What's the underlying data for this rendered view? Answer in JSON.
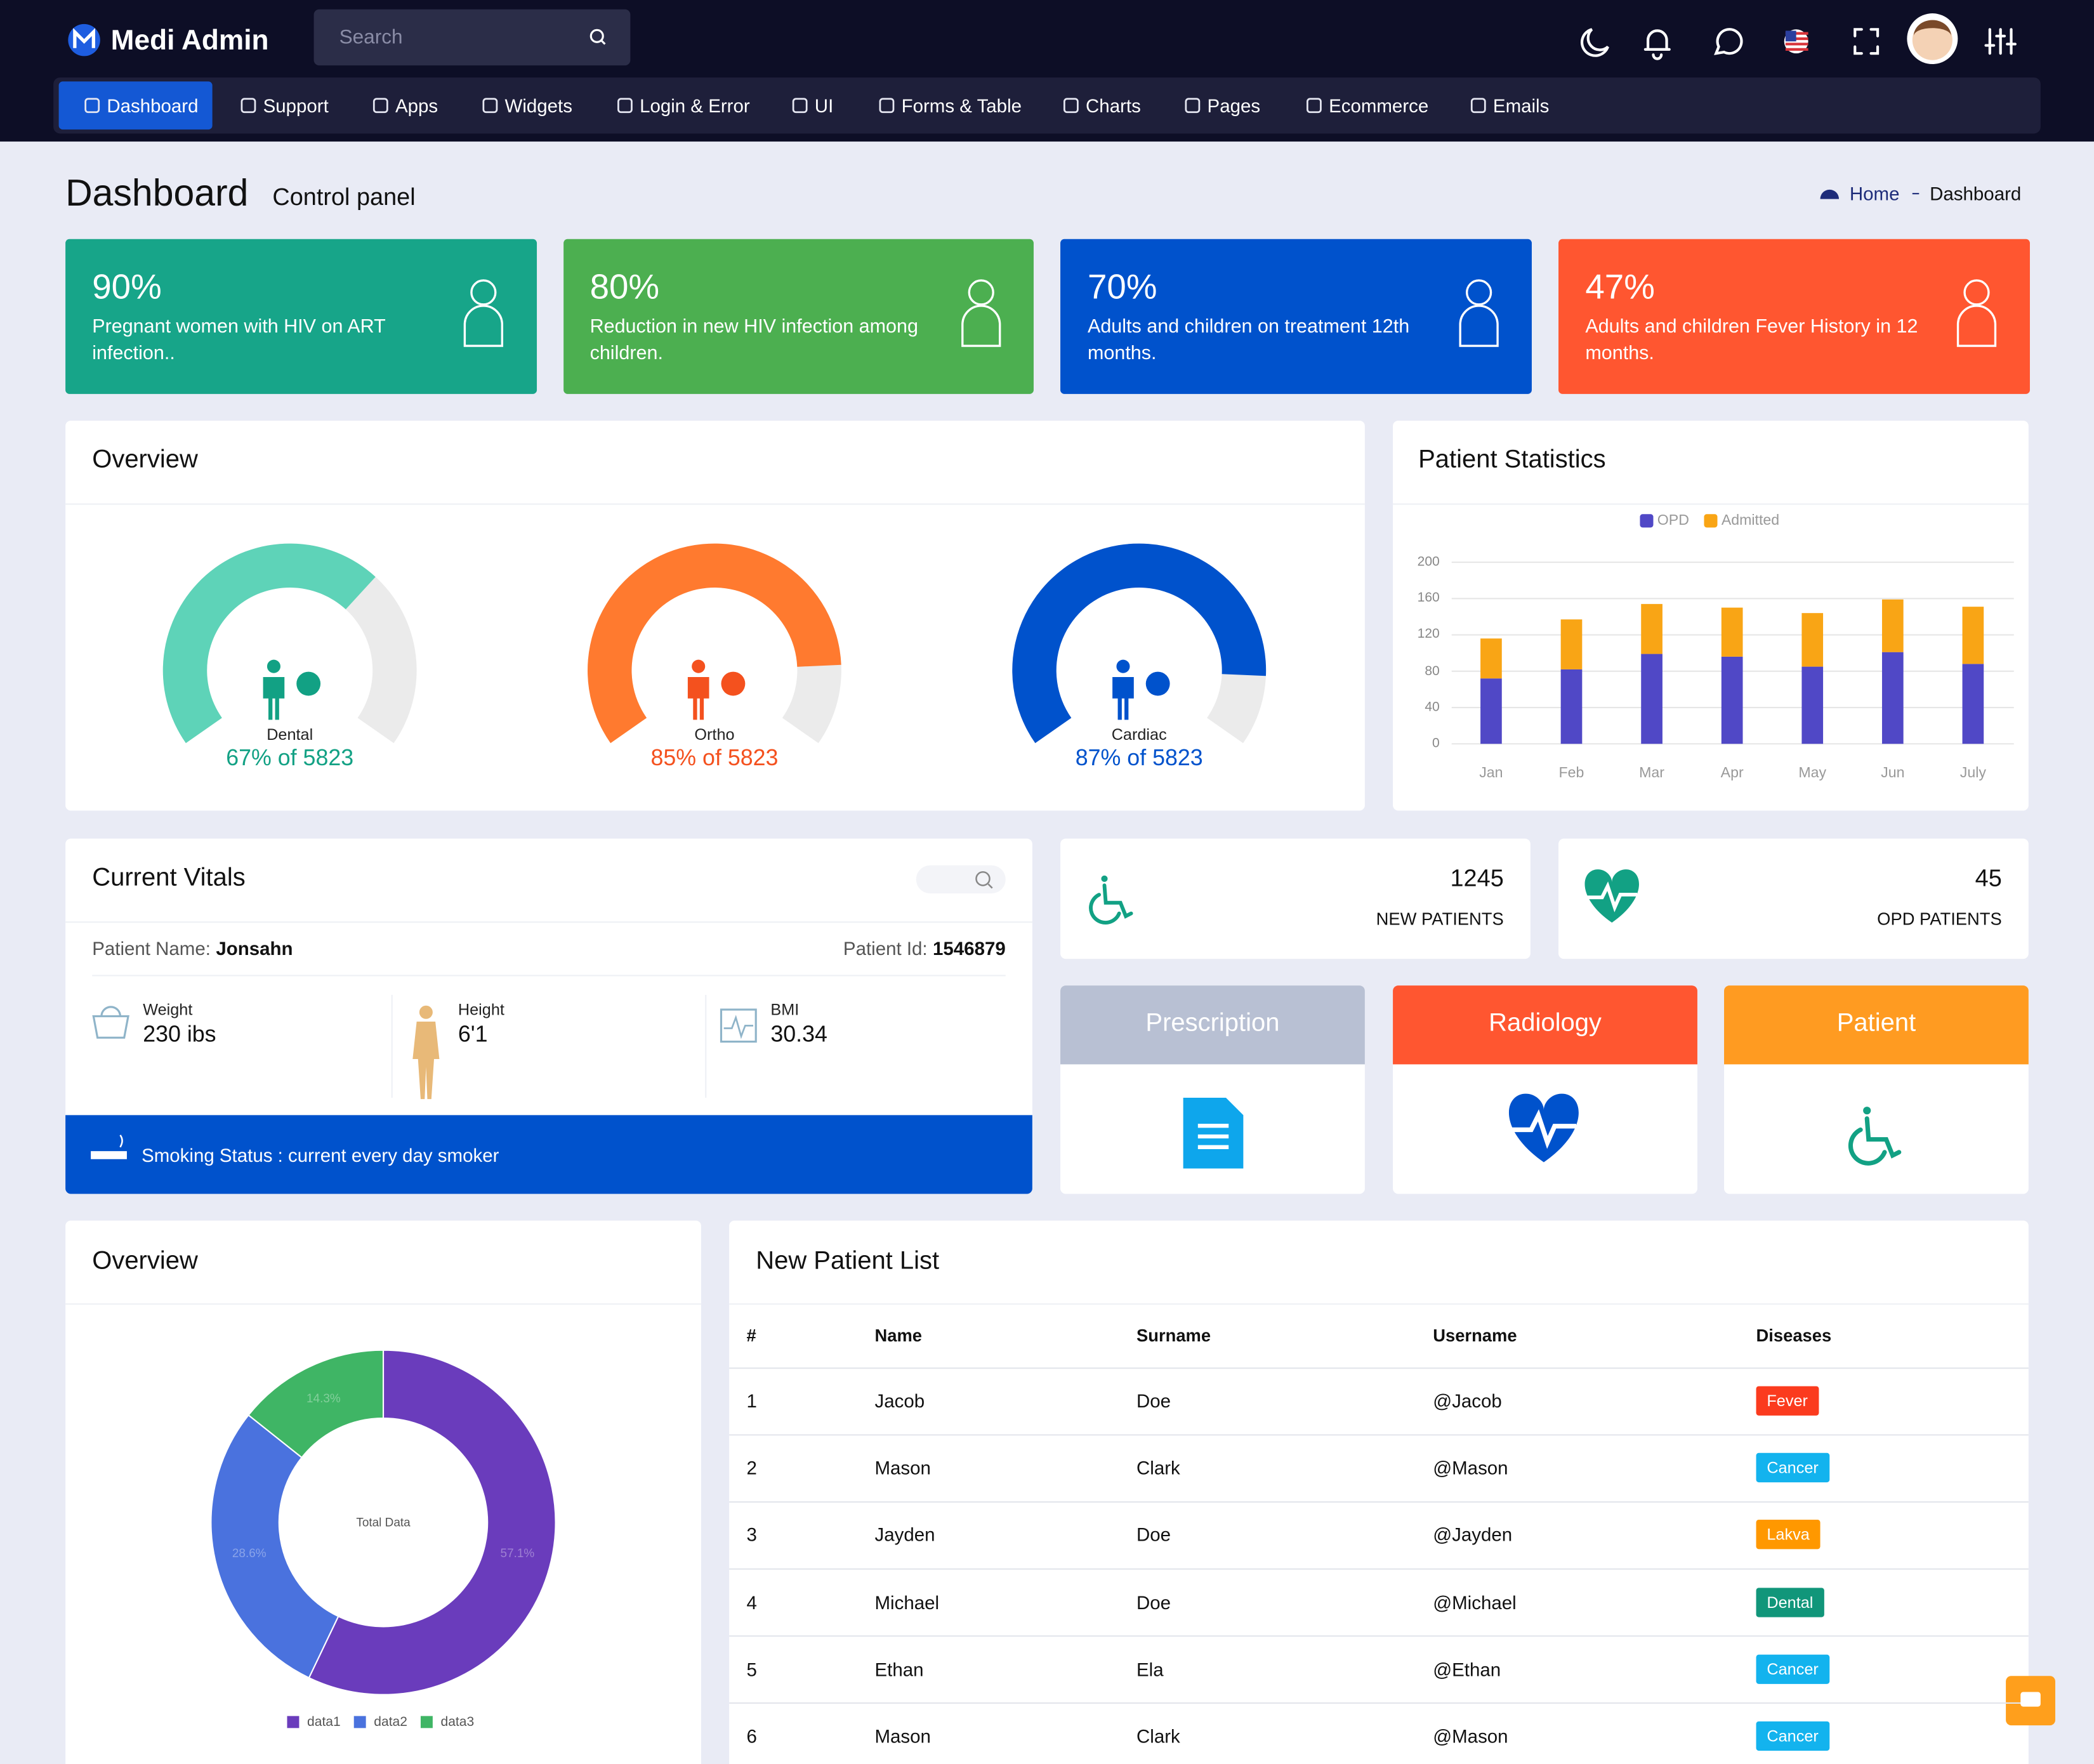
{
  "header": {
    "brand": "Medi Admin",
    "search_placeholder": "Search"
  },
  "nav": {
    "items": [
      "Dashboard",
      "Support",
      "Apps",
      "Widgets",
      "Login & Error",
      "UI",
      "Forms & Table",
      "Charts",
      "Pages",
      "Ecommerce",
      "Emails"
    ],
    "active": 0
  },
  "page": {
    "title": "Dashboard",
    "subtitle": "Control panel",
    "breadcrumb": [
      "Home",
      "Dashboard"
    ]
  },
  "stat_cards": [
    {
      "value": "90%",
      "text": "Pregnant women with HIV on ART infection..",
      "color": "#17a589"
    },
    {
      "value": "80%",
      "text": "Reduction in new HIV infection among children.",
      "color": "#4caf50"
    },
    {
      "value": "70%",
      "text": "Adults and children on treatment 12th months.",
      "color": "#0052cc"
    },
    {
      "value": "47%",
      "text": "Adults and children Fever History in 12 months.",
      "color": "#ff5630"
    }
  ],
  "overview": {
    "title": "Overview",
    "gauges": [
      {
        "label": "Dental",
        "value": 67,
        "value_label": "67% of 5823",
        "color": "#5ed3b8",
        "text_color": "#12a184"
      },
      {
        "label": "Ortho",
        "value": 85,
        "value_label": "85% of 5823",
        "color": "#ff7a2f",
        "text_color": "#f4511e"
      },
      {
        "label": "Cardiac",
        "value": 87,
        "value_label": "87% of 5823",
        "color": "#0052cc",
        "text_color": "#0052cc"
      }
    ]
  },
  "patient_statistics": {
    "type": "bar",
    "stacked": true,
    "title": "Patient Statistics",
    "categories": [
      "Jan",
      "Feb",
      "Mar",
      "Apr",
      "May",
      "Jun",
      "July"
    ],
    "series": [
      {
        "name": "OPD",
        "color": "#5048c6",
        "values": [
          72,
          82,
          99,
          96,
          85,
          101,
          88
        ]
      },
      {
        "name": "Admitted",
        "color": "#f9a515",
        "values": [
          44,
          55,
          55,
          54,
          59,
          58,
          63
        ]
      }
    ],
    "ylim": [
      0,
      200
    ],
    "yticks": [
      0,
      40,
      80,
      120,
      160,
      200
    ],
    "grid": true,
    "legend": "top"
  },
  "vitals": {
    "title": "Current Vitals",
    "patient_name_label": "Patient Name:",
    "patient_name": "Jonsahn",
    "patient_id_label": "Patient Id:",
    "patient_id": "1546879",
    "measures": [
      {
        "label": "Weight",
        "value": "230 ibs"
      },
      {
        "label": "Height",
        "value": "6'1"
      },
      {
        "label": "BMI",
        "value": "30.34"
      }
    ],
    "smoking_status": "Smoking Status : current every day smoker"
  },
  "counters": [
    {
      "value": 1245,
      "label": "NEW PATIENTS"
    },
    {
      "value": 45,
      "label": "OPD PATIENTS"
    }
  ],
  "shortcuts": [
    {
      "label": "Prescription",
      "color": "#b8c0d3"
    },
    {
      "label": "Radiology",
      "color": "#ff5630"
    },
    {
      "label": "Patient",
      "color": "#ff9b21"
    }
  ],
  "overview_donut": {
    "type": "donut",
    "title": "Overview",
    "center_label": "Total Data",
    "categories": [
      "data1",
      "data2",
      "data3"
    ],
    "values": [
      57.1,
      28.6,
      14.3
    ],
    "value_labels": [
      "57.1%",
      "28.6%",
      "14.3%"
    ],
    "colors": [
      "#6a3cbc",
      "#4a72de",
      "#3fb565"
    ]
  },
  "patient_list": {
    "title": "New Patient List",
    "columns": [
      "#",
      "Name",
      "Surname",
      "Username",
      "Diseases"
    ],
    "rows": [
      [
        1,
        "Jacob",
        "Doe",
        "@Jacob",
        "Fever"
      ],
      [
        2,
        "Mason",
        "Clark",
        "@Mason",
        "Cancer"
      ],
      [
        3,
        "Jayden",
        "Doe",
        "@Jayden",
        "Lakva"
      ],
      [
        4,
        "Michael",
        "Doe",
        "@Michael",
        "Dental"
      ],
      [
        5,
        "Ethan",
        "Ela",
        "@Ethan",
        "Cancer"
      ],
      [
        6,
        "Mason",
        "Clark",
        "@Mason",
        "Cancer"
      ]
    ],
    "badge_colors": [
      "#fb3b1e",
      "#13b3ee",
      "#ff9800",
      "#11967a",
      "#13b3ee",
      "#13b3ee"
    ]
  }
}
